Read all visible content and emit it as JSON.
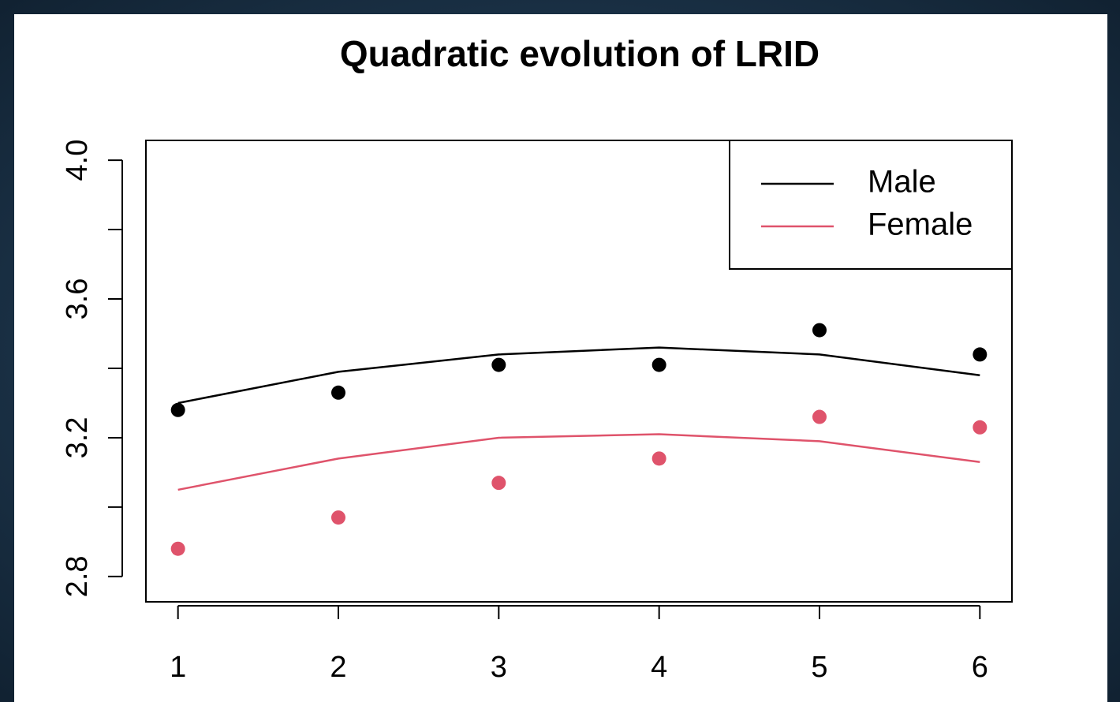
{
  "chart_data": {
    "type": "scatter",
    "title": "Quadratic evolution of LRID",
    "x": [
      1,
      2,
      3,
      4,
      5,
      6
    ],
    "series": [
      {
        "name": "Male",
        "color": "#000000",
        "values": [
          3.28,
          3.33,
          3.41,
          3.41,
          3.51,
          3.44
        ],
        "fit": [
          3.3,
          3.39,
          3.44,
          3.46,
          3.44,
          3.38
        ]
      },
      {
        "name": "Female",
        "color": "#df536b",
        "values": [
          2.88,
          2.97,
          3.07,
          3.14,
          3.26,
          3.23
        ],
        "fit": [
          3.05,
          3.14,
          3.2,
          3.21,
          3.19,
          3.13
        ]
      }
    ],
    "xlim": [
      0.8,
      6.2
    ],
    "xticks": [
      1,
      2,
      3,
      4,
      5,
      6
    ],
    "ylim": [
      2.727,
      4.057
    ],
    "yticks": [
      2.8,
      3.2,
      3.6,
      {
        "value": 4,
        "label": "4.0"
      }
    ],
    "yticks_minor": [
      3.0,
      3.4,
      3.8
    ],
    "legend": "topright"
  }
}
